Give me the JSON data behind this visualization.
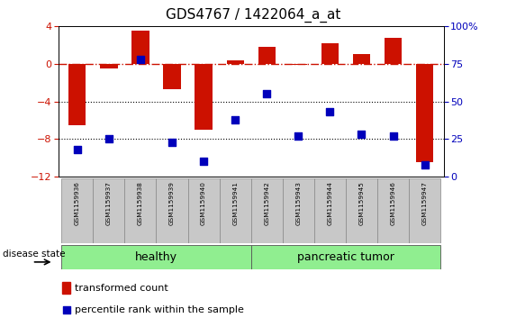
{
  "title": "GDS4767 / 1422064_a_at",
  "samples": [
    "GSM1159936",
    "GSM1159937",
    "GSM1159938",
    "GSM1159939",
    "GSM1159940",
    "GSM1159941",
    "GSM1159942",
    "GSM1159943",
    "GSM1159944",
    "GSM1159945",
    "GSM1159946",
    "GSM1159947"
  ],
  "red_bars": [
    -6.5,
    -0.5,
    3.5,
    -2.7,
    -7.0,
    0.4,
    1.8,
    -0.1,
    2.2,
    1.0,
    2.8,
    -10.5
  ],
  "percentile_rank": [
    18,
    25,
    78,
    23,
    10,
    38,
    55,
    27,
    43,
    28,
    27,
    8
  ],
  "healthy_count": 6,
  "left_ylim": [
    -12,
    4
  ],
  "right_ylim": [
    0,
    100
  ],
  "left_yticks": [
    -12,
    -8,
    -4,
    0,
    4
  ],
  "right_yticks": [
    0,
    25,
    50,
    75,
    100
  ],
  "right_yticklabels": [
    "0",
    "25",
    "50",
    "75",
    "100%"
  ],
  "bar_color": "#CC1100",
  "dot_color": "#0000BB",
  "zero_line_color": "#CC1100",
  "bg_color": "#ffffff",
  "label_box_color": "#C8C8C8",
  "healthy_color": "#90EE90",
  "tumor_color": "#90EE90",
  "legend_bar_label": "transformed count",
  "legend_dot_label": "percentile rank within the sample",
  "disease_label": "disease state",
  "bar_width": 0.55,
  "dot_size": 30,
  "title_fontsize": 11,
  "tick_fontsize": 8,
  "label_fontsize": 6,
  "disease_fontsize": 9
}
